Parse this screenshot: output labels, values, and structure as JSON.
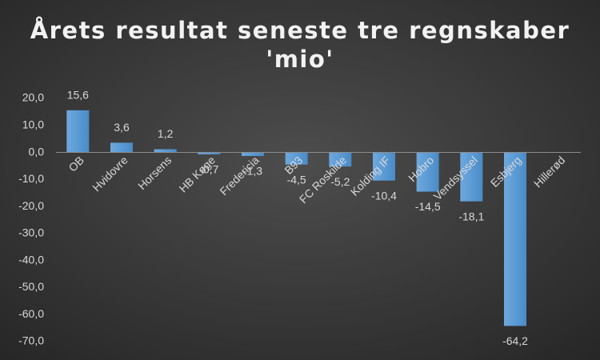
{
  "chart_data": {
    "type": "bar",
    "title": [
      "Årets resultat seneste tre regnskaber",
      "'mio'"
    ],
    "categories": [
      "OB",
      "Hvidovre",
      "Horsens",
      "HB Køge",
      "Fredericia",
      "B93",
      "FC Roskilde",
      "Kolding IF",
      "Hobro",
      "Vendsyssel",
      "Esbjerg",
      "Hillerød"
    ],
    "values": [
      15.6,
      3.6,
      1.2,
      -0.7,
      -1.3,
      -4.5,
      -5.2,
      -10.4,
      -14.5,
      -18.1,
      -64.2,
      null
    ],
    "value_labels": [
      "15,6",
      "3,6",
      "1,2",
      "-0,7",
      "-1,3",
      "-4,5",
      "-5,2",
      "-10,4",
      "-14,5",
      "-18,1",
      "-64,2",
      null
    ],
    "color": "#5b9bd5",
    "ylim": [
      -70,
      20
    ],
    "yticks": [
      {
        "value": 20,
        "label": "20,0"
      },
      {
        "value": 10,
        "label": "10,0"
      },
      {
        "value": 0,
        "label": "0,0"
      },
      {
        "value": -10,
        "label": "-10,0"
      },
      {
        "value": -20,
        "label": "-20,0"
      },
      {
        "value": -30,
        "label": "-30,0"
      },
      {
        "value": -40,
        "label": "-40,0"
      },
      {
        "value": -50,
        "label": "-50,0"
      },
      {
        "value": -60,
        "label": "-60,0"
      },
      {
        "value": -70,
        "label": "-70,0"
      }
    ],
    "grid": false
  }
}
